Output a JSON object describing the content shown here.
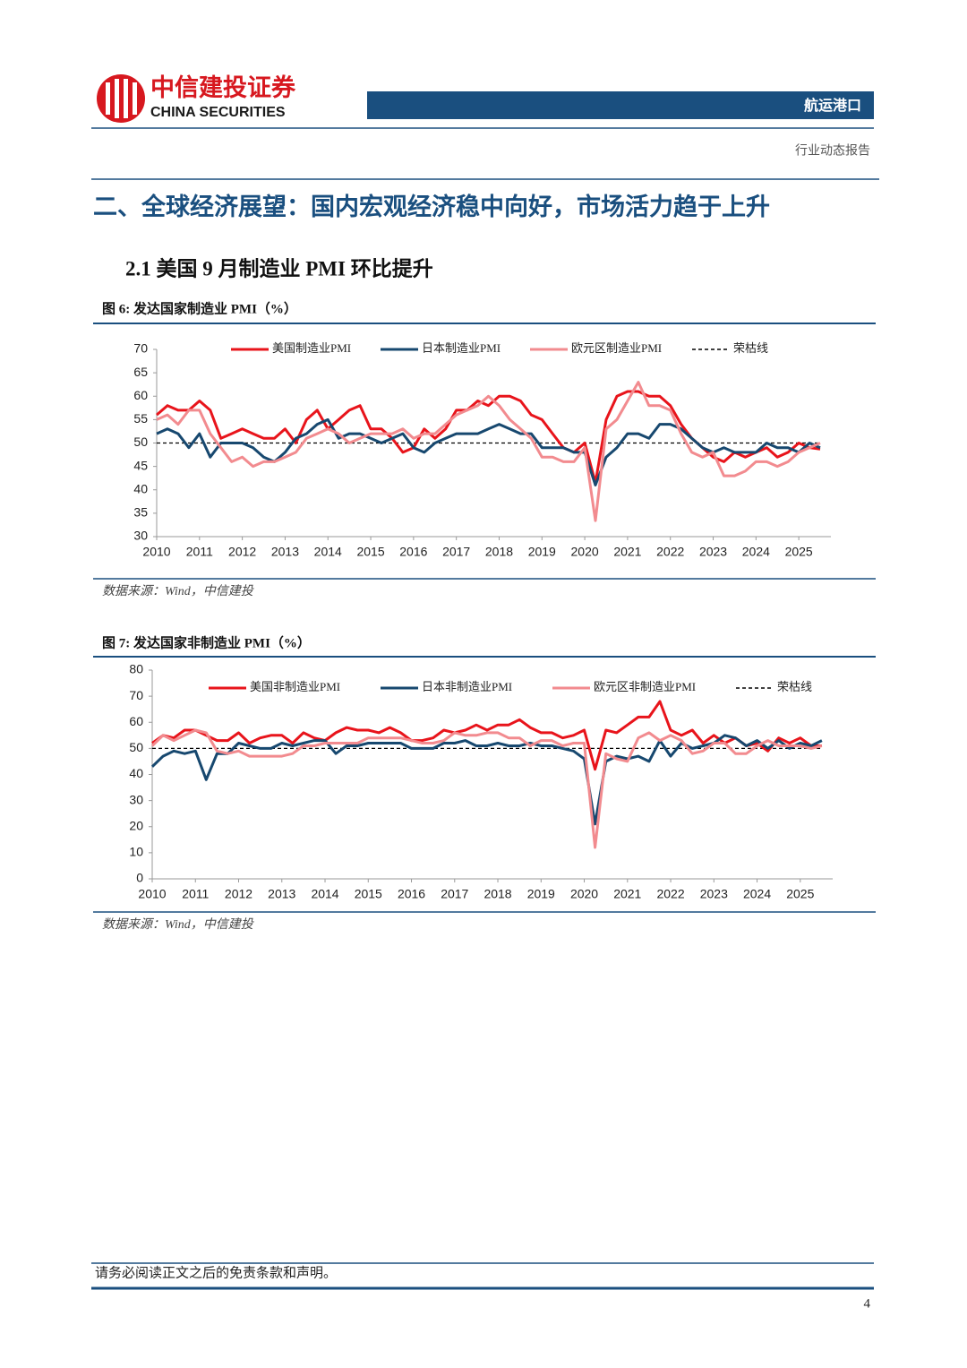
{
  "header": {
    "company": "中信建投证券",
    "company_en": "CHINA SECURITIES",
    "sector": "航运港口",
    "report_type": "行业动态报告"
  },
  "section_title": "二、全球经济展望：国内宏观经济稳中向好，市场活力趋于上升",
  "subsection_title": "2.1 美国 9 月制造业 PMI 环比提升",
  "chart_data": [
    {
      "type": "line",
      "title": "图 6: 发达国家制造业 PMI（%）",
      "source": "数据来源：Wind，中信建投",
      "x": [
        2010,
        2010.25,
        2010.5,
        2010.75,
        2011,
        2011.25,
        2011.5,
        2011.75,
        2012,
        2012.25,
        2012.5,
        2012.75,
        2013,
        2013.25,
        2013.5,
        2013.75,
        2014,
        2014.25,
        2014.5,
        2014.75,
        2015,
        2015.25,
        2015.5,
        2015.75,
        2016,
        2016.25,
        2016.5,
        2016.75,
        2017,
        2017.25,
        2017.5,
        2017.75,
        2018,
        2018.25,
        2018.5,
        2018.75,
        2019,
        2019.25,
        2019.5,
        2019.75,
        2020,
        2020.25,
        2020.5,
        2020.75,
        2021,
        2021.25,
        2021.5,
        2021.75,
        2022,
        2022.25,
        2022.5,
        2022.75,
        2023,
        2023.25,
        2023.5,
        2023.75,
        2024,
        2024.25,
        2024.5,
        2024.75,
        2025,
        2025.25,
        2025.5
      ],
      "xlim": [
        2010,
        2025.75
      ],
      "xticks": [
        2010,
        2011,
        2012,
        2013,
        2014,
        2015,
        2016,
        2017,
        2018,
        2019,
        2020,
        2021,
        2022,
        2023,
        2024,
        2025
      ],
      "ylim": [
        30,
        70
      ],
      "yticks": [
        30,
        35,
        40,
        45,
        50,
        55,
        60,
        65,
        70
      ],
      "grid": false,
      "reference": {
        "name": "荣枯线",
        "value": 50,
        "color": "#000000"
      },
      "series": [
        {
          "name": "美国制造业PMI",
          "color": "#e8141b",
          "values": [
            56,
            58,
            57,
            57,
            59,
            57,
            51,
            52,
            53,
            52,
            51,
            51,
            53,
            50,
            55,
            57,
            53,
            55,
            57,
            58,
            53,
            53,
            51,
            48,
            49,
            53,
            51,
            53,
            57,
            57,
            59,
            58,
            60,
            60,
            59,
            56,
            55,
            52,
            49,
            48,
            50,
            41.5,
            55,
            60,
            61,
            61,
            60,
            60,
            58,
            54,
            51,
            49,
            47,
            46,
            48,
            47,
            48,
            49,
            47,
            48,
            50,
            49,
            48.7
          ]
        },
        {
          "name": "日本制造业PMI",
          "color": "#17486f",
          "values": [
            52,
            53,
            52,
            49,
            52,
            47,
            50,
            50,
            50,
            49,
            47,
            46,
            48,
            51,
            52,
            54,
            55,
            51,
            52,
            52,
            51,
            50,
            51,
            52,
            49,
            48,
            50,
            51,
            52,
            52,
            52,
            53,
            54,
            53,
            52,
            52,
            49,
            49,
            49,
            48,
            48,
            41,
            47,
            49,
            52,
            52,
            51,
            54,
            54,
            53,
            51,
            49,
            48,
            49,
            48,
            48,
            48,
            50,
            49,
            49,
            48,
            50,
            49
          ]
        },
        {
          "name": "欧元区制造业PMI",
          "color": "#f28b8f",
          "values": [
            55,
            56,
            54,
            57,
            57,
            52,
            49,
            46,
            47,
            45,
            46,
            46,
            47,
            48,
            51,
            52,
            53,
            52,
            50,
            51,
            52,
            52,
            52,
            53,
            51,
            52,
            52,
            54,
            56,
            57,
            58,
            60,
            58,
            55,
            53,
            51,
            47,
            47,
            46,
            46,
            49,
            33.4,
            53,
            55,
            59,
            63,
            58,
            58,
            57,
            52,
            48,
            47,
            48,
            43,
            43,
            44,
            46,
            46,
            45,
            46,
            48,
            49,
            50
          ]
        }
      ]
    },
    {
      "type": "line",
      "title": "图 7: 发达国家非制造业 PMI（%）",
      "source": "数据来源：Wind，中信建投",
      "x": [
        2010,
        2010.25,
        2010.5,
        2010.75,
        2011,
        2011.25,
        2011.5,
        2011.75,
        2012,
        2012.25,
        2012.5,
        2012.75,
        2013,
        2013.25,
        2013.5,
        2013.75,
        2014,
        2014.25,
        2014.5,
        2014.75,
        2015,
        2015.25,
        2015.5,
        2015.75,
        2016,
        2016.25,
        2016.5,
        2016.75,
        2017,
        2017.25,
        2017.5,
        2017.75,
        2018,
        2018.25,
        2018.5,
        2018.75,
        2019,
        2019.25,
        2019.5,
        2019.75,
        2020,
        2020.25,
        2020.5,
        2020.75,
        2021,
        2021.25,
        2021.5,
        2021.75,
        2022,
        2022.25,
        2022.5,
        2022.75,
        2023,
        2023.25,
        2023.5,
        2023.75,
        2024,
        2024.25,
        2024.5,
        2024.75,
        2025,
        2025.25,
        2025.5
      ],
      "xlim": [
        2010,
        2025.75
      ],
      "xticks": [
        2010,
        2011,
        2012,
        2013,
        2014,
        2015,
        2016,
        2017,
        2018,
        2019,
        2020,
        2021,
        2022,
        2023,
        2024,
        2025
      ],
      "ylim": [
        0,
        80
      ],
      "yticks": [
        0,
        10,
        20,
        30,
        40,
        50,
        60,
        70,
        80
      ],
      "grid": false,
      "reference": {
        "name": "荣枯线",
        "value": 50,
        "color": "#000000"
      },
      "series": [
        {
          "name": "美国非制造业PMI",
          "color": "#e8141b",
          "values": [
            52,
            55,
            54,
            57,
            57,
            55,
            53,
            53,
            56,
            52,
            54,
            55,
            55,
            52,
            56,
            54,
            53,
            56,
            58,
            57,
            57,
            56,
            58,
            56,
            53,
            53,
            54,
            57,
            56,
            57,
            59,
            57,
            59,
            59,
            61,
            58,
            56,
            56,
            54,
            55,
            57,
            42,
            57,
            56,
            59,
            62,
            62,
            68,
            57,
            55,
            57,
            52,
            55,
            52,
            54,
            51,
            52,
            49,
            54,
            52,
            54,
            51,
            51
          ]
        },
        {
          "name": "日本非制造业PMI",
          "color": "#17486f",
          "values": [
            43,
            47,
            49,
            48,
            49,
            38,
            48,
            48,
            52,
            51,
            50,
            50,
            52,
            51,
            52,
            53,
            53,
            48,
            51,
            51,
            52,
            52,
            52,
            52,
            50,
            50,
            50,
            52,
            52,
            53,
            51,
            51,
            52,
            51,
            51,
            52,
            51,
            51,
            50,
            49,
            46,
            21,
            45,
            47,
            46,
            47,
            45,
            53,
            47,
            52,
            50,
            51,
            52,
            55,
            54,
            51,
            53,
            50,
            53,
            50,
            52,
            51,
            53
          ]
        },
        {
          "name": "欧元区非制造业PMI",
          "color": "#f28b8f",
          "values": [
            51,
            55,
            53,
            55,
            57,
            56,
            49,
            48,
            49,
            47,
            47,
            47,
            47,
            48,
            51,
            51,
            52,
            52,
            52,
            52,
            54,
            54,
            54,
            54,
            53,
            52,
            52,
            53,
            56,
            55,
            55,
            56,
            56,
            54,
            54,
            51,
            53,
            53,
            51,
            52,
            52,
            12,
            48,
            46,
            45,
            54,
            56,
            53,
            55,
            53,
            48,
            49,
            52,
            52,
            48,
            48,
            51,
            53,
            51,
            51,
            51,
            50,
            51
          ]
        }
      ]
    }
  ],
  "footer": {
    "disclaimer": "请务必阅读正文之后的免责条款和声明。",
    "page": "4"
  }
}
